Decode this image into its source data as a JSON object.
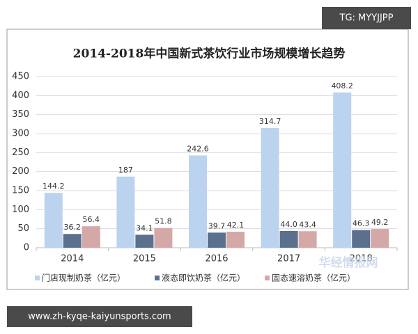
{
  "chart_data": {
    "type": "bar",
    "title": "2014-2018年中国新式茶饮行业市场规模增长趋势",
    "categories": [
      "2014",
      "2015",
      "2016",
      "2017",
      "2018"
    ],
    "series": [
      {
        "name": "门店现制奶茶（亿元）",
        "color": "#bcd3f0",
        "values": [
          144.2,
          187,
          242.6,
          314.7,
          408.2
        ]
      },
      {
        "name": "液态即饮奶茶（亿元）",
        "color": "#5b6f8e",
        "values": [
          36.2,
          34.1,
          39.7,
          44.0,
          46.3
        ],
        "value_labels": [
          "36.2",
          "34.1",
          "39.7",
          "44.0",
          "46.3"
        ]
      },
      {
        "name": "固态速溶奶茶（亿元）",
        "color": "#d5a8a8",
        "values": [
          56.4,
          51.8,
          42.1,
          43.4,
          49.2
        ]
      }
    ],
    "ylim": [
      0,
      450
    ],
    "yticks": [
      0,
      50,
      100,
      150,
      200,
      250,
      300,
      350,
      400,
      450
    ],
    "grid": true,
    "legend": "bottom"
  },
  "overlays": {
    "badge": "TG: MYYJJPP",
    "watermark": "华经情报网",
    "url": "www.zh-kyqe-kaiyunsports.com"
  }
}
